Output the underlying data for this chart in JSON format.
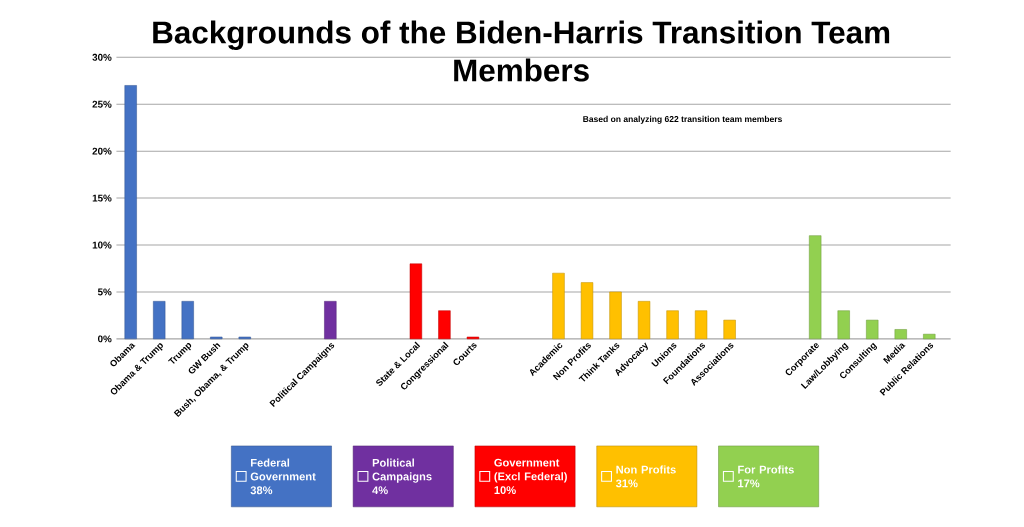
{
  "chart_data": {
    "type": "bar",
    "title": "Backgrounds of the Biden-Harris Transition Team Members",
    "categories": [
      "Obama",
      "Obama & Trump",
      "Trump",
      "GW Bush",
      "Bush, Obama, & Trump",
      null,
      null,
      "Political Campaigns",
      null,
      null,
      "State & Local",
      "Congressional",
      "Courts",
      null,
      null,
      "Academic",
      "Non Profits",
      "Think Tanks",
      "Advocacy",
      "Unions",
      "Foundations",
      "Associations",
      null,
      null,
      "Corporate",
      "Law/Lobbying",
      "Consulting",
      "Media",
      "Public Relations"
    ],
    "series": [
      {
        "name": "Federal Government 38%",
        "color": "#4472c4",
        "values": [
          27,
          4,
          4,
          0.2,
          0.2,
          null,
          null,
          null,
          null,
          null,
          null,
          null,
          null,
          null,
          null,
          null,
          null,
          null,
          null,
          null,
          null,
          null,
          null,
          null,
          null,
          null,
          null,
          null,
          null
        ]
      },
      {
        "name": "Political Campaigns 4%",
        "color": "#7030a0",
        "values": [
          null,
          null,
          null,
          null,
          null,
          null,
          null,
          4,
          null,
          null,
          null,
          null,
          null,
          null,
          null,
          null,
          null,
          null,
          null,
          null,
          null,
          null,
          null,
          null,
          null,
          null,
          null,
          null,
          null
        ]
      },
      {
        "name": "Government (Excl Federal) 10%",
        "color": "#ff0000",
        "values": [
          null,
          null,
          null,
          null,
          null,
          null,
          null,
          null,
          null,
          null,
          8,
          3,
          0.2,
          null,
          null,
          null,
          null,
          null,
          null,
          null,
          null,
          null,
          null,
          null,
          null,
          null,
          null,
          null,
          null
        ]
      },
      {
        "name": "Non Profits 31%",
        "color": "#ffc000",
        "values": [
          null,
          null,
          null,
          null,
          null,
          null,
          null,
          null,
          null,
          null,
          null,
          null,
          null,
          null,
          null,
          7,
          6,
          5,
          4,
          3,
          3,
          2,
          null,
          null,
          null,
          null,
          null,
          null,
          null
        ]
      },
      {
        "name": "For Profits 17%",
        "color": "#92d050",
        "values": [
          null,
          null,
          null,
          null,
          null,
          null,
          null,
          null,
          null,
          null,
          null,
          null,
          null,
          null,
          null,
          null,
          null,
          null,
          null,
          null,
          null,
          null,
          null,
          null,
          11,
          3,
          2,
          1,
          0.5
        ]
      }
    ],
    "ylim": [
      0,
      30
    ],
    "yticks": [
      {
        "value": 0,
        "label": "0%"
      },
      {
        "value": 5,
        "label": "5%"
      },
      {
        "value": 10,
        "label": "10%"
      },
      {
        "value": 15,
        "label": "15%"
      },
      {
        "value": 20,
        "label": "20%"
      },
      {
        "value": 25,
        "label": "25%"
      },
      {
        "value": 30,
        "label": "30%"
      }
    ],
    "grid": "y",
    "legend": "bottom",
    "annotations": [
      "Based on analyzing 622 transition team members"
    ]
  }
}
